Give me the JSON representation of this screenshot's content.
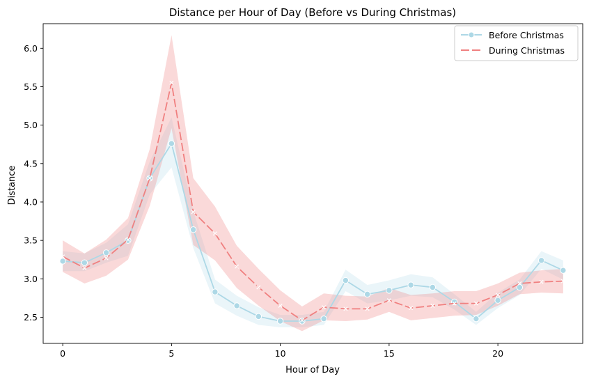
{
  "chart_data": {
    "type": "line",
    "title": "Distance per Hour of Day (Before vs During Christmas)",
    "xlabel": "Hour of Day",
    "ylabel": "Distance",
    "xlim": [
      -0.9,
      23.9
    ],
    "ylim": [
      2.16,
      6.32
    ],
    "xticks": [
      0,
      5,
      10,
      15,
      20
    ],
    "yticks": [
      2.5,
      3.0,
      3.5,
      4.0,
      4.5,
      5.0,
      5.5,
      6.0
    ],
    "ytick_labels": [
      "2.5",
      "3.0",
      "3.5",
      "4.0",
      "4.5",
      "5.0",
      "5.5",
      "6.0"
    ],
    "grid": false,
    "legend_position": "top-right",
    "x": [
      0,
      1,
      2,
      3,
      4,
      5,
      6,
      7,
      8,
      9,
      10,
      11,
      12,
      13,
      14,
      15,
      16,
      17,
      18,
      19,
      20,
      21,
      22,
      23
    ],
    "series": [
      {
        "name": "Before Christmas",
        "color": "#add8e6",
        "marker": "circle",
        "linestyle": "solid",
        "values": [
          3.23,
          3.21,
          3.34,
          3.5,
          4.31,
          4.76,
          3.64,
          2.83,
          2.65,
          2.51,
          2.45,
          2.45,
          2.48,
          2.98,
          2.8,
          2.85,
          2.92,
          2.89,
          2.7,
          2.48,
          2.72,
          2.89,
          3.24,
          3.11
        ],
        "ci_low": [
          3.1,
          3.1,
          3.21,
          3.3,
          4.1,
          4.45,
          3.4,
          2.68,
          2.52,
          2.4,
          2.37,
          2.37,
          2.4,
          2.84,
          2.68,
          2.72,
          2.78,
          2.76,
          2.6,
          2.4,
          2.62,
          2.79,
          3.13,
          2.99
        ],
        "ci_high": [
          3.36,
          3.33,
          3.47,
          3.71,
          4.53,
          5.1,
          3.88,
          2.99,
          2.78,
          2.63,
          2.53,
          2.53,
          2.57,
          3.12,
          2.92,
          2.98,
          3.06,
          3.02,
          2.8,
          2.57,
          2.82,
          2.99,
          3.36,
          3.24
        ]
      },
      {
        "name": "During Christmas",
        "color": "#f08080",
        "marker": "x",
        "linestyle": "dashed",
        "values": [
          3.29,
          3.14,
          3.27,
          3.51,
          4.31,
          5.55,
          3.87,
          3.59,
          3.16,
          2.89,
          2.65,
          2.46,
          2.63,
          2.61,
          2.61,
          2.72,
          2.62,
          2.65,
          2.68,
          2.68,
          2.79,
          2.94,
          2.96,
          2.97
        ],
        "ci_low": [
          3.09,
          2.94,
          3.04,
          3.25,
          3.95,
          4.96,
          3.44,
          3.24,
          2.88,
          2.65,
          2.45,
          2.32,
          2.46,
          2.45,
          2.47,
          2.57,
          2.46,
          2.49,
          2.52,
          2.53,
          2.65,
          2.8,
          2.82,
          2.81
        ],
        "ci_high": [
          3.5,
          3.33,
          3.51,
          3.79,
          4.69,
          6.17,
          4.31,
          3.94,
          3.43,
          3.13,
          2.85,
          2.64,
          2.81,
          2.78,
          2.77,
          2.88,
          2.79,
          2.81,
          2.84,
          2.84,
          2.94,
          3.08,
          3.11,
          3.13
        ]
      }
    ]
  }
}
